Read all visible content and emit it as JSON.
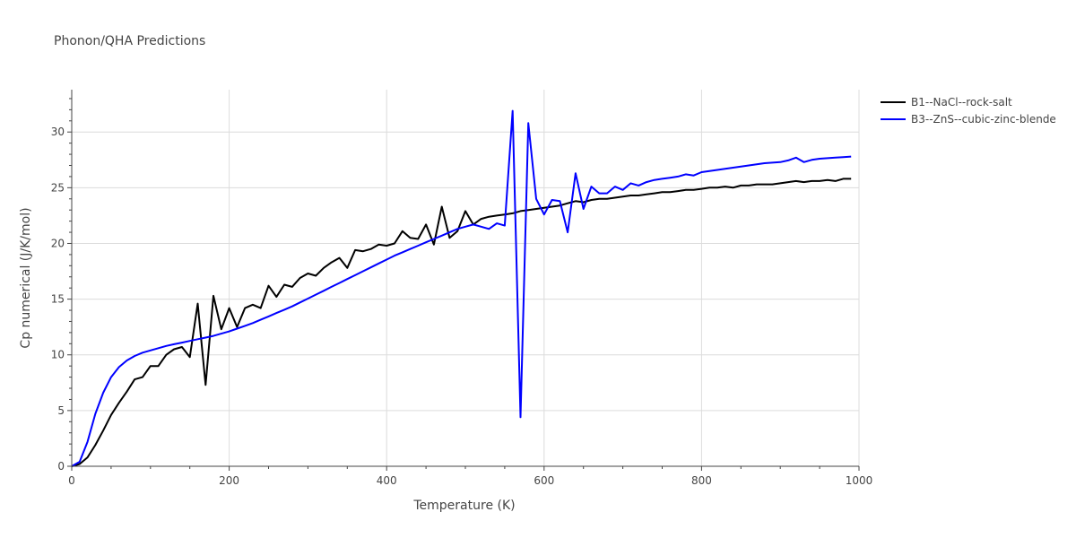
{
  "chart_data": {
    "type": "line",
    "title": "Phonon/QHA Predictions",
    "xlabel": "Temperature (K)",
    "ylabel": "Cp numerical (J/K/mol)",
    "xlim": [
      0,
      1000
    ],
    "ylim": [
      0,
      33.8
    ],
    "xticks": [
      0,
      200,
      400,
      600,
      800,
      1000
    ],
    "yticks": [
      0,
      5,
      10,
      15,
      20,
      25,
      30
    ],
    "grid": true,
    "legend_position": "top-right",
    "series": [
      {
        "name": "B1--NaCl--rock-salt",
        "color": "#000000",
        "x": [
          0,
          10,
          20,
          30,
          40,
          50,
          60,
          70,
          80,
          90,
          100,
          110,
          120,
          130,
          140,
          150,
          160,
          170,
          180,
          190,
          200,
          210,
          220,
          230,
          240,
          250,
          260,
          270,
          280,
          290,
          300,
          310,
          320,
          330,
          340,
          350,
          360,
          370,
          380,
          390,
          400,
          410,
          420,
          430,
          440,
          450,
          460,
          470,
          480,
          490,
          500,
          510,
          520,
          530,
          540,
          550,
          560,
          570,
          580,
          590,
          600,
          610,
          620,
          630,
          640,
          650,
          660,
          670,
          680,
          690,
          700,
          710,
          720,
          730,
          740,
          750,
          760,
          770,
          780,
          790,
          800,
          810,
          820,
          830,
          840,
          850,
          860,
          870,
          880,
          890,
          900,
          910,
          920,
          930,
          940,
          950,
          960,
          970,
          980,
          990
        ],
        "y": [
          0,
          0.2,
          0.8,
          1.9,
          3.2,
          4.6,
          5.7,
          6.7,
          7.8,
          8.0,
          9.0,
          9.0,
          10.0,
          10.5,
          10.7,
          9.8,
          14.6,
          7.3,
          15.3,
          12.3,
          14.2,
          12.5,
          14.2,
          14.5,
          14.2,
          16.2,
          15.2,
          16.3,
          16.1,
          16.9,
          17.3,
          17.1,
          17.8,
          18.3,
          18.7,
          17.8,
          19.4,
          19.3,
          19.5,
          19.9,
          19.8,
          20.0,
          21.1,
          20.5,
          20.4,
          21.7,
          19.9,
          23.3,
          20.5,
          21.1,
          22.9,
          21.7,
          22.2,
          22.4,
          22.5,
          22.6,
          22.7,
          22.9,
          23.0,
          23.1,
          23.2,
          23.3,
          23.4,
          23.6,
          23.8,
          23.7,
          23.9,
          24.0,
          24.0,
          24.1,
          24.2,
          24.3,
          24.3,
          24.4,
          24.5,
          24.6,
          24.6,
          24.7,
          24.8,
          24.8,
          24.9,
          25.0,
          25.0,
          25.1,
          25.0,
          25.2,
          25.2,
          25.3,
          25.3,
          25.3,
          25.4,
          25.5,
          25.6,
          25.5,
          25.6,
          25.6,
          25.7,
          25.6,
          25.8,
          25.8
        ]
      },
      {
        "name": "B3--ZnS--cubic-zinc-blende",
        "color": "#0000ff",
        "x": [
          0,
          10,
          20,
          30,
          40,
          50,
          60,
          70,
          80,
          90,
          100,
          110,
          120,
          130,
          140,
          150,
          160,
          170,
          180,
          190,
          200,
          210,
          220,
          230,
          240,
          250,
          260,
          270,
          280,
          290,
          300,
          310,
          320,
          330,
          340,
          350,
          360,
          370,
          380,
          390,
          400,
          410,
          420,
          430,
          440,
          450,
          460,
          470,
          480,
          490,
          500,
          510,
          520,
          530,
          540,
          550,
          560,
          570,
          580,
          590,
          600,
          610,
          620,
          630,
          640,
          650,
          660,
          670,
          680,
          690,
          700,
          710,
          720,
          730,
          740,
          750,
          760,
          770,
          780,
          790,
          800,
          810,
          820,
          830,
          840,
          850,
          860,
          870,
          880,
          890,
          900,
          910,
          920,
          930,
          940,
          950,
          960,
          970,
          980,
          990
        ],
        "y": [
          0,
          0.4,
          2.2,
          4.7,
          6.6,
          8.0,
          8.9,
          9.5,
          9.9,
          10.2,
          10.4,
          10.6,
          10.8,
          10.95,
          11.1,
          11.25,
          11.4,
          11.55,
          11.7,
          11.9,
          12.1,
          12.35,
          12.6,
          12.85,
          13.15,
          13.45,
          13.75,
          14.05,
          14.35,
          14.7,
          15.05,
          15.4,
          15.75,
          16.1,
          16.45,
          16.8,
          17.15,
          17.5,
          17.85,
          18.2,
          18.55,
          18.9,
          19.2,
          19.5,
          19.8,
          20.1,
          20.4,
          20.7,
          21.0,
          21.3,
          21.5,
          21.7,
          21.5,
          21.3,
          21.8,
          21.6,
          31.9,
          4.4,
          30.8,
          24.0,
          22.6,
          23.9,
          23.8,
          21.0,
          26.3,
          23.1,
          25.1,
          24.5,
          24.5,
          25.1,
          24.8,
          25.4,
          25.2,
          25.5,
          25.7,
          25.8,
          25.9,
          26.0,
          26.2,
          26.1,
          26.4,
          26.5,
          26.6,
          26.7,
          26.8,
          26.9,
          27.0,
          27.1,
          27.2,
          27.25,
          27.3,
          27.45,
          27.7,
          27.3,
          27.5,
          27.6,
          27.65,
          27.7,
          27.75,
          27.8
        ]
      }
    ]
  }
}
